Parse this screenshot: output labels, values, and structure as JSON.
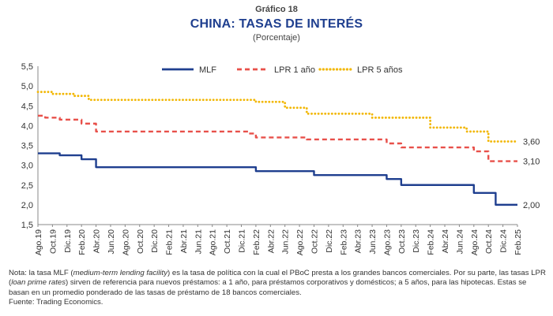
{
  "header": {
    "pretitle": "Gráfico 18",
    "title": "CHINA: TASAS DE INTERÉS",
    "subtitle": "(Porcentaje)"
  },
  "chart_data": {
    "type": "line",
    "title": "CHINA: TASAS DE INTERÉS",
    "subtitle": "(Porcentaje)",
    "x_start": "2019-08",
    "x_end": "2025-02",
    "ylim": [
      1.5,
      5.5
    ],
    "yticks": [
      "1,5",
      "2,0",
      "2,5",
      "3,0",
      "3,5",
      "4,0",
      "4,5",
      "5,0",
      "5,5"
    ],
    "xtick_labels": [
      "Ago.19",
      "Oct.19",
      "Dic.19",
      "Feb.20",
      "Abr.20",
      "Jun.20",
      "Ago.20",
      "Oct.20",
      "Dic.20",
      "Feb.21",
      "Abr.21",
      "Jun.21",
      "Ago.21",
      "Oct.21",
      "Dic.21",
      "Feb.22",
      "Abr.22",
      "Jun.22",
      "Ago.22",
      "Oct.22",
      "Dic.22",
      "Feb.23",
      "Abr.23",
      "Jun.23",
      "Ago.23",
      "Oct.23",
      "Dic.23",
      "Feb.24",
      "Abr.24",
      "Jun.24",
      "Ago.24",
      "Oct.24",
      "Dic.24",
      "Feb.25"
    ],
    "legend_position": "top",
    "grid": false,
    "series": [
      {
        "name": "MLF",
        "color": "#1f3f8f",
        "style": "solid",
        "end_label": "2,00",
        "values": [
          3.3,
          3.3,
          3.3,
          3.25,
          3.25,
          3.25,
          3.15,
          3.15,
          2.95,
          2.95,
          2.95,
          2.95,
          2.95,
          2.95,
          2.95,
          2.95,
          2.95,
          2.95,
          2.95,
          2.95,
          2.95,
          2.95,
          2.95,
          2.95,
          2.95,
          2.95,
          2.95,
          2.95,
          2.95,
          2.95,
          2.85,
          2.85,
          2.85,
          2.85,
          2.85,
          2.85,
          2.85,
          2.85,
          2.75,
          2.75,
          2.75,
          2.75,
          2.75,
          2.75,
          2.75,
          2.75,
          2.75,
          2.75,
          2.65,
          2.65,
          2.5,
          2.5,
          2.5,
          2.5,
          2.5,
          2.5,
          2.5,
          2.5,
          2.5,
          2.5,
          2.3,
          2.3,
          2.3,
          2.0,
          2.0,
          2.0,
          2.0
        ]
      },
      {
        "name": "LPR 1 año",
        "color": "#e8504a",
        "style": "dashed",
        "end_label": "3,10",
        "values": [
          4.25,
          4.2,
          4.2,
          4.15,
          4.15,
          4.15,
          4.05,
          4.05,
          3.85,
          3.85,
          3.85,
          3.85,
          3.85,
          3.85,
          3.85,
          3.85,
          3.85,
          3.85,
          3.85,
          3.85,
          3.85,
          3.85,
          3.85,
          3.85,
          3.85,
          3.85,
          3.85,
          3.85,
          3.85,
          3.8,
          3.7,
          3.7,
          3.7,
          3.7,
          3.7,
          3.7,
          3.7,
          3.65,
          3.65,
          3.65,
          3.65,
          3.65,
          3.65,
          3.65,
          3.65,
          3.65,
          3.65,
          3.65,
          3.55,
          3.55,
          3.45,
          3.45,
          3.45,
          3.45,
          3.45,
          3.45,
          3.45,
          3.45,
          3.45,
          3.45,
          3.35,
          3.35,
          3.1,
          3.1,
          3.1,
          3.1,
          3.1
        ]
      },
      {
        "name": "LPR 5 años",
        "color": "#f2b705",
        "style": "dotted",
        "end_label": "3,60",
        "values": [
          4.85,
          4.85,
          4.8,
          4.8,
          4.8,
          4.75,
          4.75,
          4.65,
          4.65,
          4.65,
          4.65,
          4.65,
          4.65,
          4.65,
          4.65,
          4.65,
          4.65,
          4.65,
          4.65,
          4.65,
          4.65,
          4.65,
          4.65,
          4.65,
          4.65,
          4.65,
          4.65,
          4.65,
          4.65,
          4.65,
          4.6,
          4.6,
          4.6,
          4.6,
          4.45,
          4.45,
          4.45,
          4.3,
          4.3,
          4.3,
          4.3,
          4.3,
          4.3,
          4.3,
          4.3,
          4.3,
          4.2,
          4.2,
          4.2,
          4.2,
          4.2,
          4.2,
          4.2,
          4.2,
          3.95,
          3.95,
          3.95,
          3.95,
          3.95,
          3.85,
          3.85,
          3.85,
          3.6,
          3.6,
          3.6,
          3.6,
          3.6
        ]
      }
    ]
  },
  "notes": {
    "nota_1": "Nota: la tasa MLF (",
    "mlf_term": "medium-term lending facility",
    "nota_2": ") es la tasa de política con la cual el PBoC presta a los grandes bancos comerciales. Por su parte, las tasas LPR (",
    "lpr_term": "loan prime rates",
    "nota_3": ") sirven de referencia para nuevos préstamos: a 1 año, para préstamos corporativos y domésticos; a 5 años, para las hipotecas. Estas se basan en un promedio ponderado de las tasas de préstamo de 18 bancos comerciales.",
    "fuente": "Fuente: Trading Economics."
  }
}
